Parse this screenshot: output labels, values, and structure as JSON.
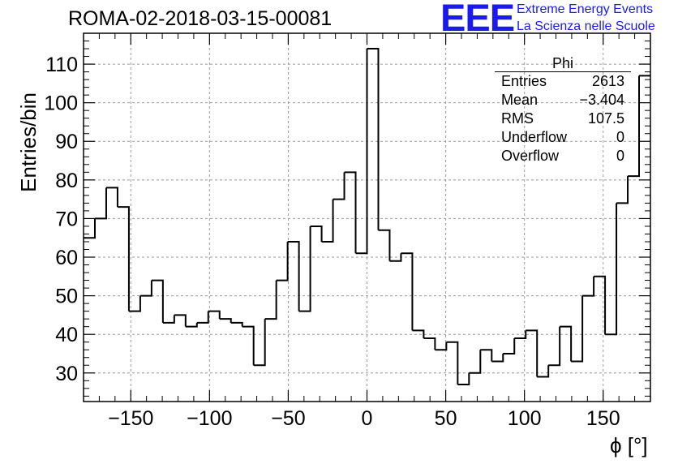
{
  "header": {
    "run_title": "ROMA-02-2018-03-15-00081",
    "logo_letters": "EEE",
    "logo_line1": "Extreme Energy Events",
    "logo_line2": "La Scienza nelle Scuole"
  },
  "stats_box": {
    "name": "Phi",
    "rows": [
      {
        "label": "Entries",
        "value": "2613"
      },
      {
        "label": "Mean",
        "value": "−3.404"
      },
      {
        "label": "RMS",
        "value": "107.5"
      },
      {
        "label": "Underflow",
        "value": "0"
      },
      {
        "label": "Overflow",
        "value": "0"
      }
    ]
  },
  "chart_data": {
    "type": "histogram",
    "title": "ROMA-02-2018-03-15-00081",
    "xlabel": "ϕ [°]",
    "ylabel": "Entries/bin",
    "xlim": [
      -180,
      180
    ],
    "ylim": [
      22.6,
      118
    ],
    "bin_width": 7.2,
    "x_ticks": [
      -150,
      -100,
      -50,
      0,
      50,
      100,
      150
    ],
    "x_tick_labels": [
      "−150",
      "−100",
      "−50",
      "0",
      "50",
      "100",
      "150"
    ],
    "y_ticks": [
      30,
      40,
      50,
      60,
      70,
      80,
      90,
      100,
      110
    ],
    "y_tick_labels": [
      "30",
      "40",
      "50",
      "60",
      "70",
      "80",
      "90",
      "100",
      "110"
    ],
    "grid": true,
    "line_color": "#000000",
    "values": [
      65,
      70,
      78,
      73,
      46,
      50,
      54,
      43,
      45,
      42,
      43,
      46,
      44,
      43,
      42,
      32,
      44,
      54,
      64,
      46,
      68,
      64,
      75,
      82,
      61,
      114,
      67,
      59,
      61,
      41,
      39,
      36,
      38,
      27,
      30,
      36,
      33,
      35,
      39,
      41,
      29,
      32,
      42,
      33,
      50,
      55,
      40,
      74,
      81,
      107
    ]
  }
}
